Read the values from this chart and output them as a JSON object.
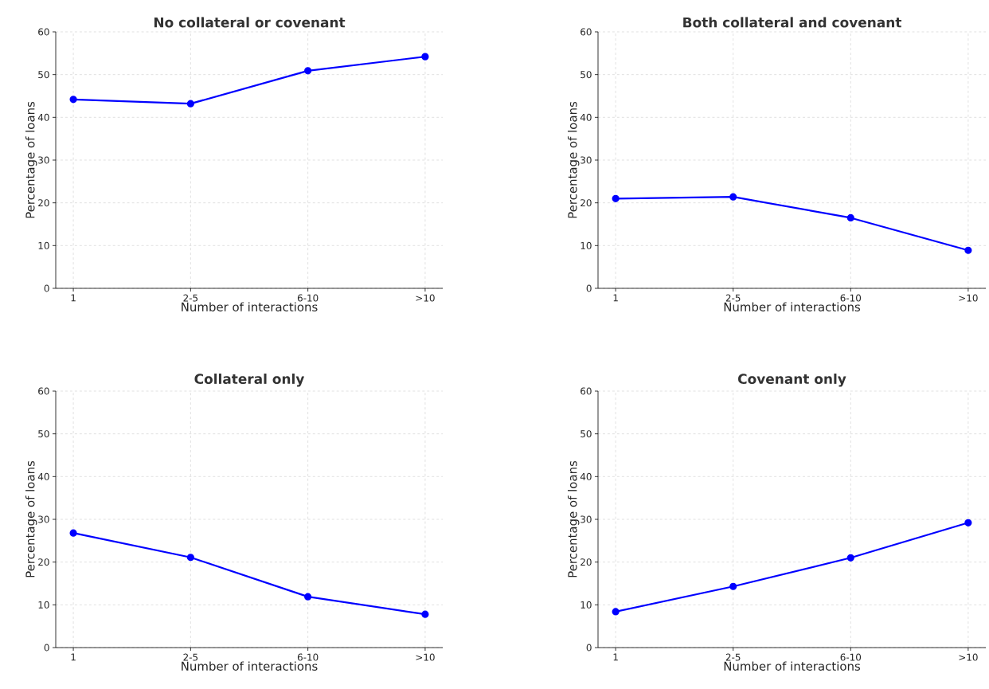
{
  "chart_data": [
    {
      "type": "line",
      "title": "No collateral or covenant",
      "xlabel": "Number of interactions",
      "ylabel": "Percentage of loans",
      "categories": [
        "1",
        "2-5",
        "6-10",
        ">10"
      ],
      "values": [
        44.2,
        43.2,
        50.9,
        54.2
      ],
      "color": "#0000ff",
      "ylim": [
        0,
        60
      ],
      "yticks": [
        0,
        10,
        20,
        30,
        40,
        50,
        60
      ],
      "grid": true,
      "marker": "circle",
      "line_style": "solid"
    },
    {
      "type": "line",
      "title": "Both collateral and covenant",
      "xlabel": "Number of interactions",
      "ylabel": "Percentage of loans",
      "categories": [
        "1",
        "2-5",
        "6-10",
        ">10"
      ],
      "values": [
        21.0,
        21.4,
        16.5,
        8.9
      ],
      "color": "#0000ff",
      "ylim": [
        0,
        60
      ],
      "yticks": [
        0,
        10,
        20,
        30,
        40,
        50,
        60
      ],
      "grid": true,
      "marker": "circle",
      "line_style": "solid"
    },
    {
      "type": "line",
      "title": "Collateral only",
      "xlabel": "Number of interactions",
      "ylabel": "Percentage of loans",
      "categories": [
        "1",
        "2-5",
        "6-10",
        ">10"
      ],
      "values": [
        26.8,
        21.1,
        11.9,
        7.8
      ],
      "color": "#0000ff",
      "ylim": [
        0,
        60
      ],
      "yticks": [
        0,
        10,
        20,
        30,
        40,
        50,
        60
      ],
      "grid": true,
      "marker": "circle",
      "line_style": "solid"
    },
    {
      "type": "line",
      "title": "Covenant only",
      "xlabel": "Number of interactions",
      "ylabel": "Percentage of loans",
      "categories": [
        "1",
        "2-5",
        "6-10",
        ">10"
      ],
      "values": [
        8.4,
        14.3,
        21.0,
        29.2
      ],
      "color": "#0000ff",
      "ylim": [
        0,
        60
      ],
      "yticks": [
        0,
        10,
        20,
        30,
        40,
        50,
        60
      ],
      "grid": true,
      "marker": "circle",
      "line_style": "solid"
    }
  ]
}
